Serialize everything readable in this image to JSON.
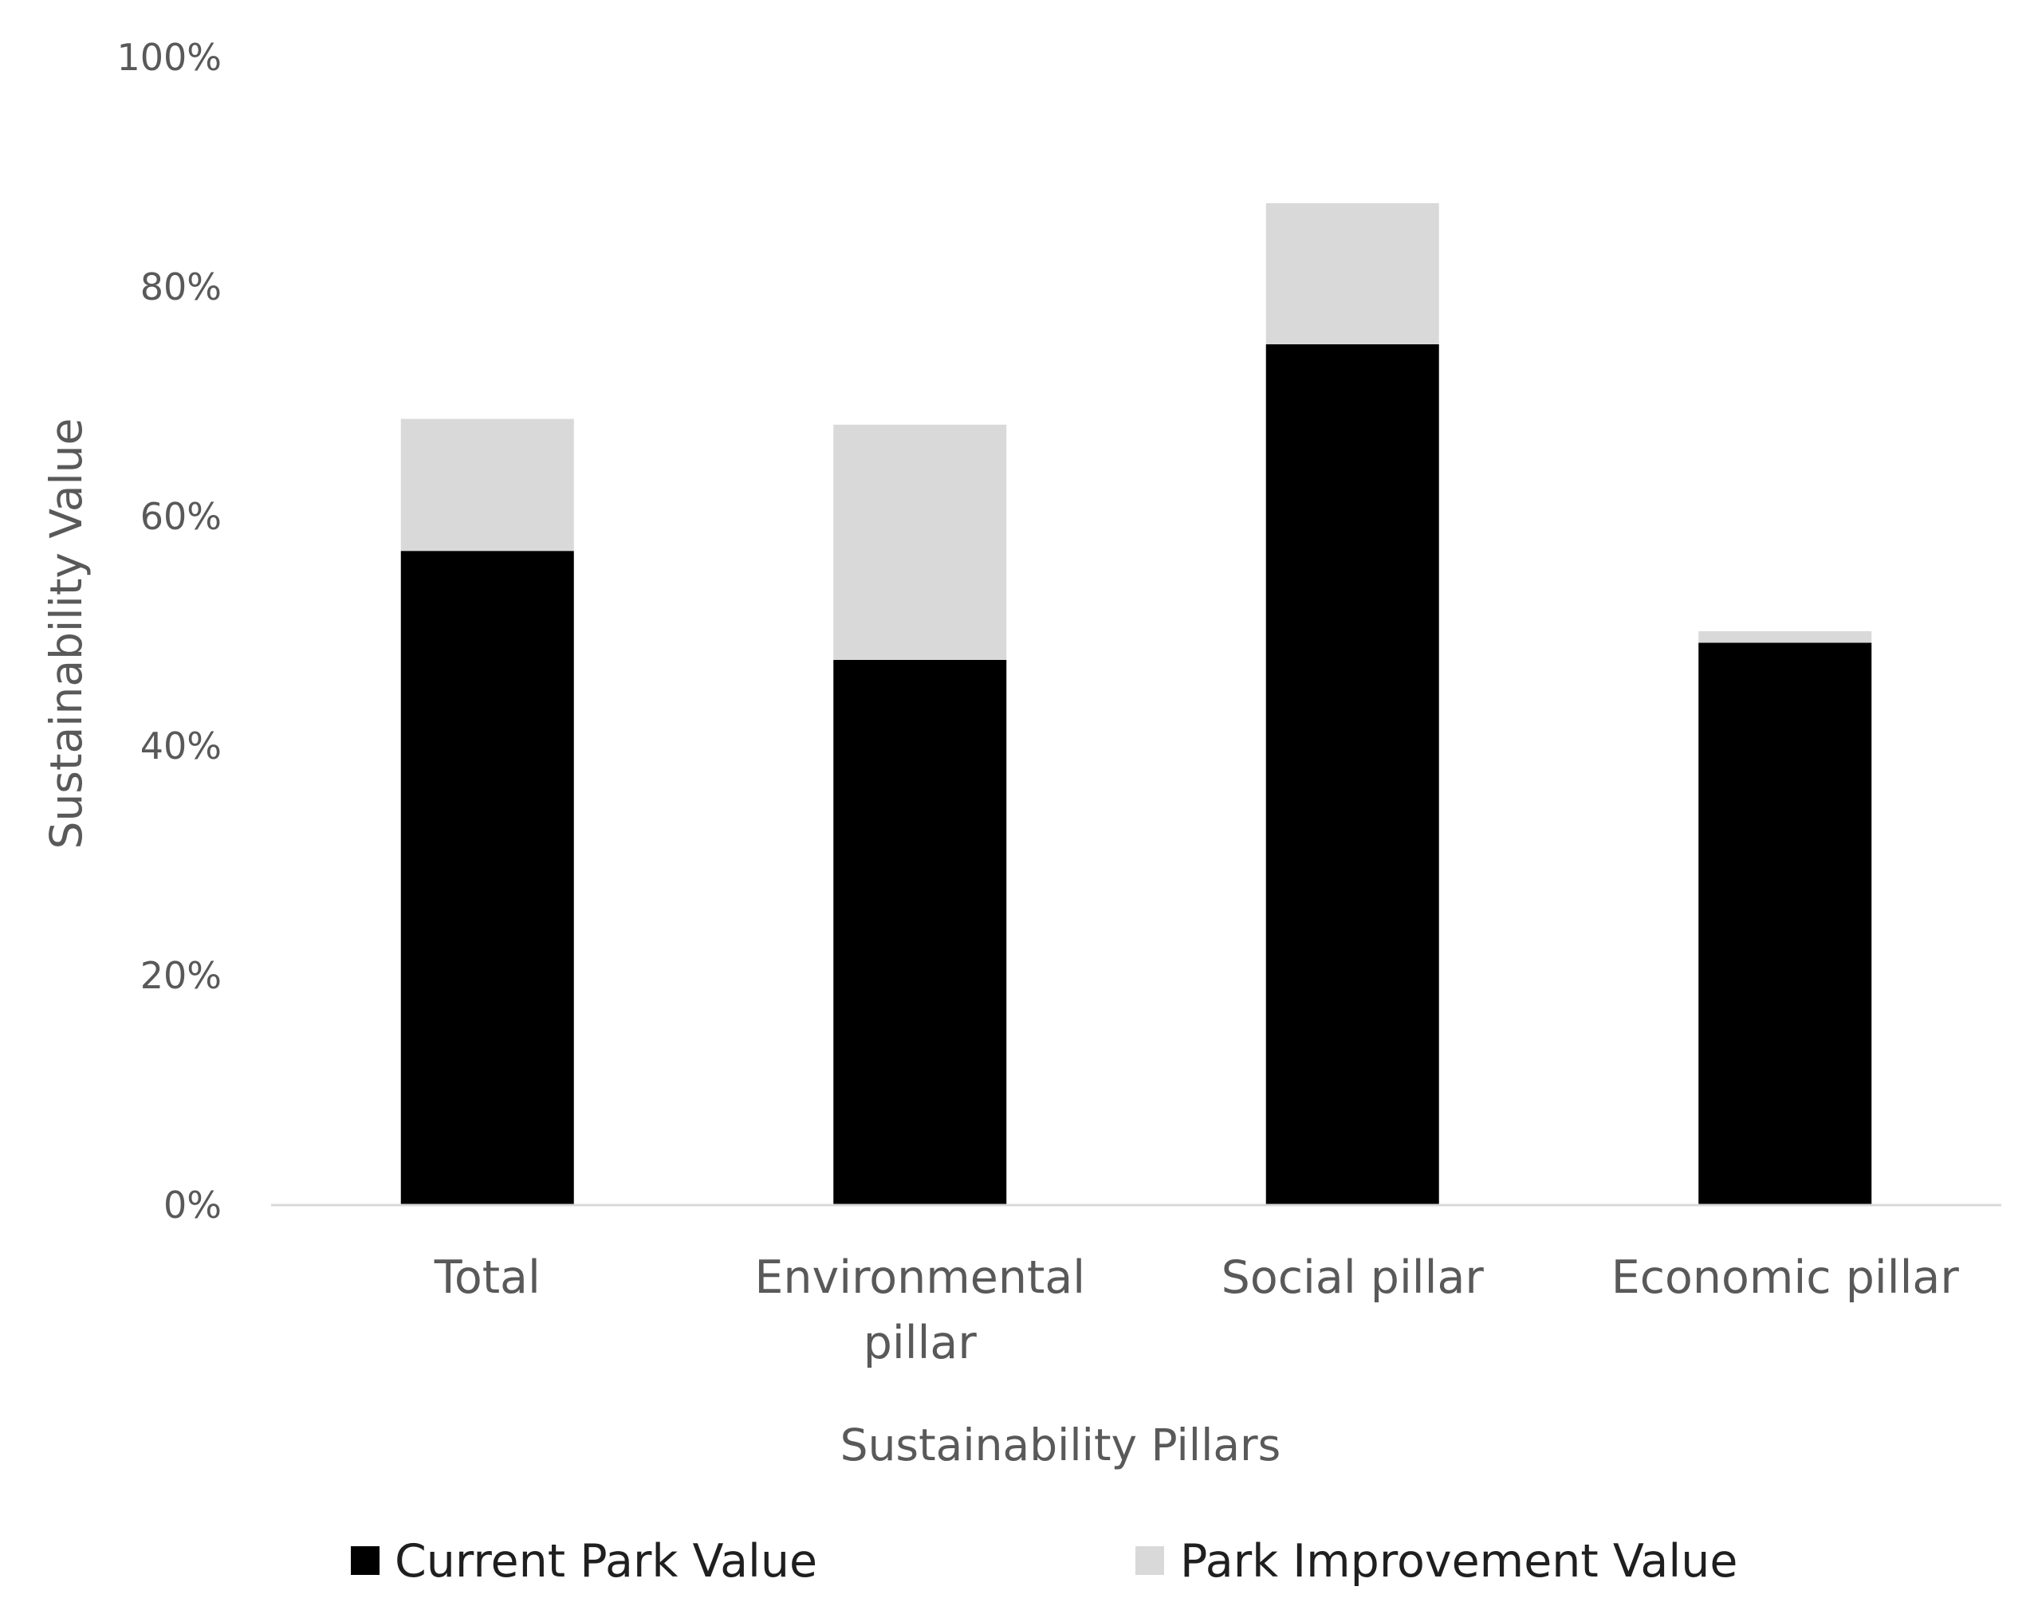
{
  "chart_data": {
    "type": "bar",
    "stacked": true,
    "categories": [
      "Total",
      "Environmental pillar",
      "Social pillar",
      "Economic pillar"
    ],
    "category_lines": [
      [
        "Total"
      ],
      [
        "Environmental",
        "pillar"
      ],
      [
        "Social pillar"
      ],
      [
        "Economic pillar"
      ]
    ],
    "series": [
      {
        "name": "Current Park Value",
        "color": "#000000",
        "values": [
          57,
          47.5,
          75,
          49
        ]
      },
      {
        "name": "Park Improvement Value",
        "color": "#d9d9d9",
        "values": [
          11.5,
          20.5,
          12.3,
          1
        ]
      }
    ],
    "title": "",
    "xlabel": "Sustainability Pillars",
    "ylabel": "Sustainability Value",
    "ylim": [
      0,
      100
    ],
    "yticks": [
      0,
      20,
      40,
      60,
      80,
      100
    ],
    "ytick_labels": [
      "0%",
      "20%",
      "40%",
      "60%",
      "80%",
      "100%"
    ],
    "grid": false,
    "legend_position": "bottom"
  }
}
